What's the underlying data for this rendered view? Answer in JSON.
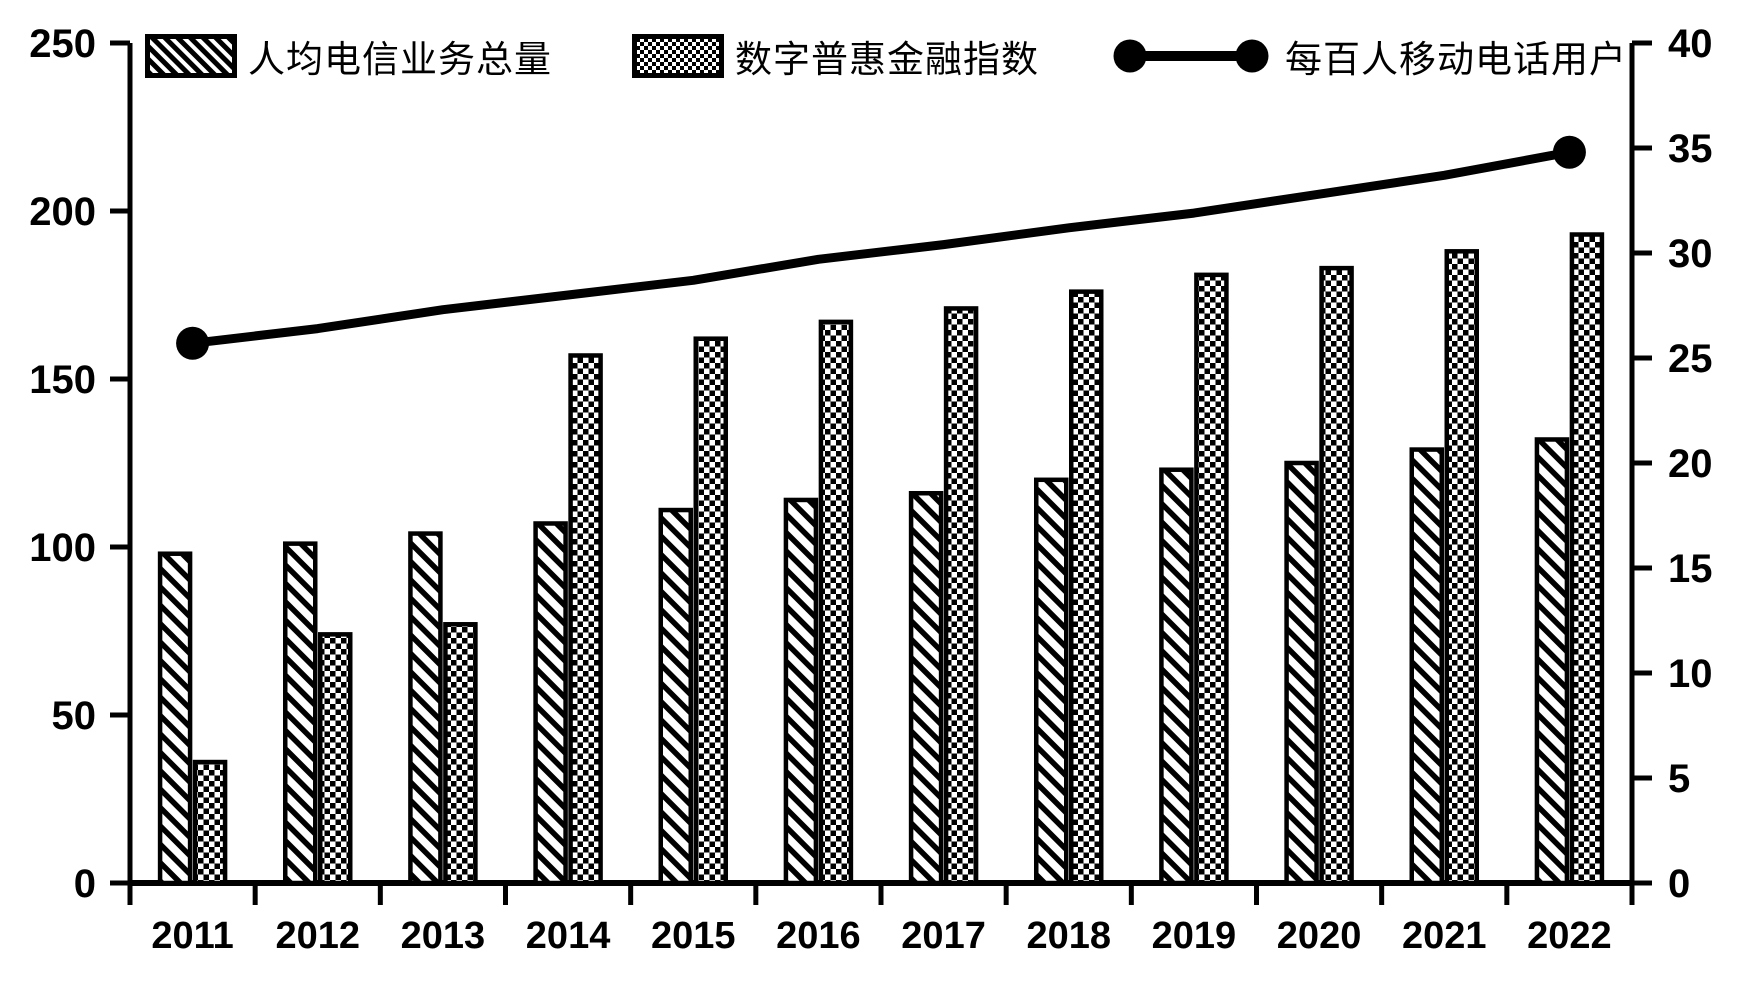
{
  "legend": [
    {
      "label": "人均电信业务总量",
      "swatch": "diagonal-stripe-swatch"
    },
    {
      "label": "数字普惠金融指数",
      "swatch": "checkerboard-swatch"
    },
    {
      "label": "每百人移动电话用户",
      "swatch": "line-with-circle-markers"
    }
  ],
  "chart_data": {
    "type": "bar",
    "subtype": "grouped-bars-with-secondary-axis-line",
    "title": "",
    "categories": [
      "2011",
      "2012",
      "2013",
      "2014",
      "2015",
      "2016",
      "2017",
      "2018",
      "2019",
      "2020",
      "2021",
      "2022"
    ],
    "series": [
      {
        "name": "人均电信业务总量",
        "type": "bar",
        "axis": "left",
        "pattern": "diagonal-stripes",
        "values": [
          98,
          101,
          104,
          107,
          111,
          114,
          116,
          120,
          123,
          125,
          129,
          132
        ]
      },
      {
        "name": "数字普惠金融指数",
        "type": "bar",
        "axis": "left",
        "pattern": "checkerboard",
        "values": [
          36,
          74,
          77,
          157,
          162,
          167,
          171,
          176,
          181,
          183,
          188,
          193
        ]
      },
      {
        "name": "每百人移动电话用户",
        "type": "line",
        "axis": "right",
        "color": "#000000",
        "marker": "filled-circle-at-endpoints-only",
        "values": [
          25.7,
          26.4,
          27.3,
          28.0,
          28.7,
          29.7,
          30.4,
          31.2,
          31.9,
          32.8,
          33.7,
          34.8
        ]
      }
    ],
    "left_axis": {
      "min": 0,
      "max": 250,
      "step": 50,
      "tick_labels": [
        "0",
        "50",
        "100",
        "150",
        "200",
        "250"
      ]
    },
    "right_axis": {
      "min": 0,
      "max": 40,
      "step": 5,
      "tick_labels": [
        "0",
        "5",
        "10",
        "15",
        "20",
        "25",
        "30",
        "35",
        "40"
      ]
    },
    "xlabel": "",
    "ylabel": "",
    "grid": false,
    "legend_position": "top",
    "colors": {
      "foreground": "#000000",
      "background": "#ffffff"
    }
  }
}
